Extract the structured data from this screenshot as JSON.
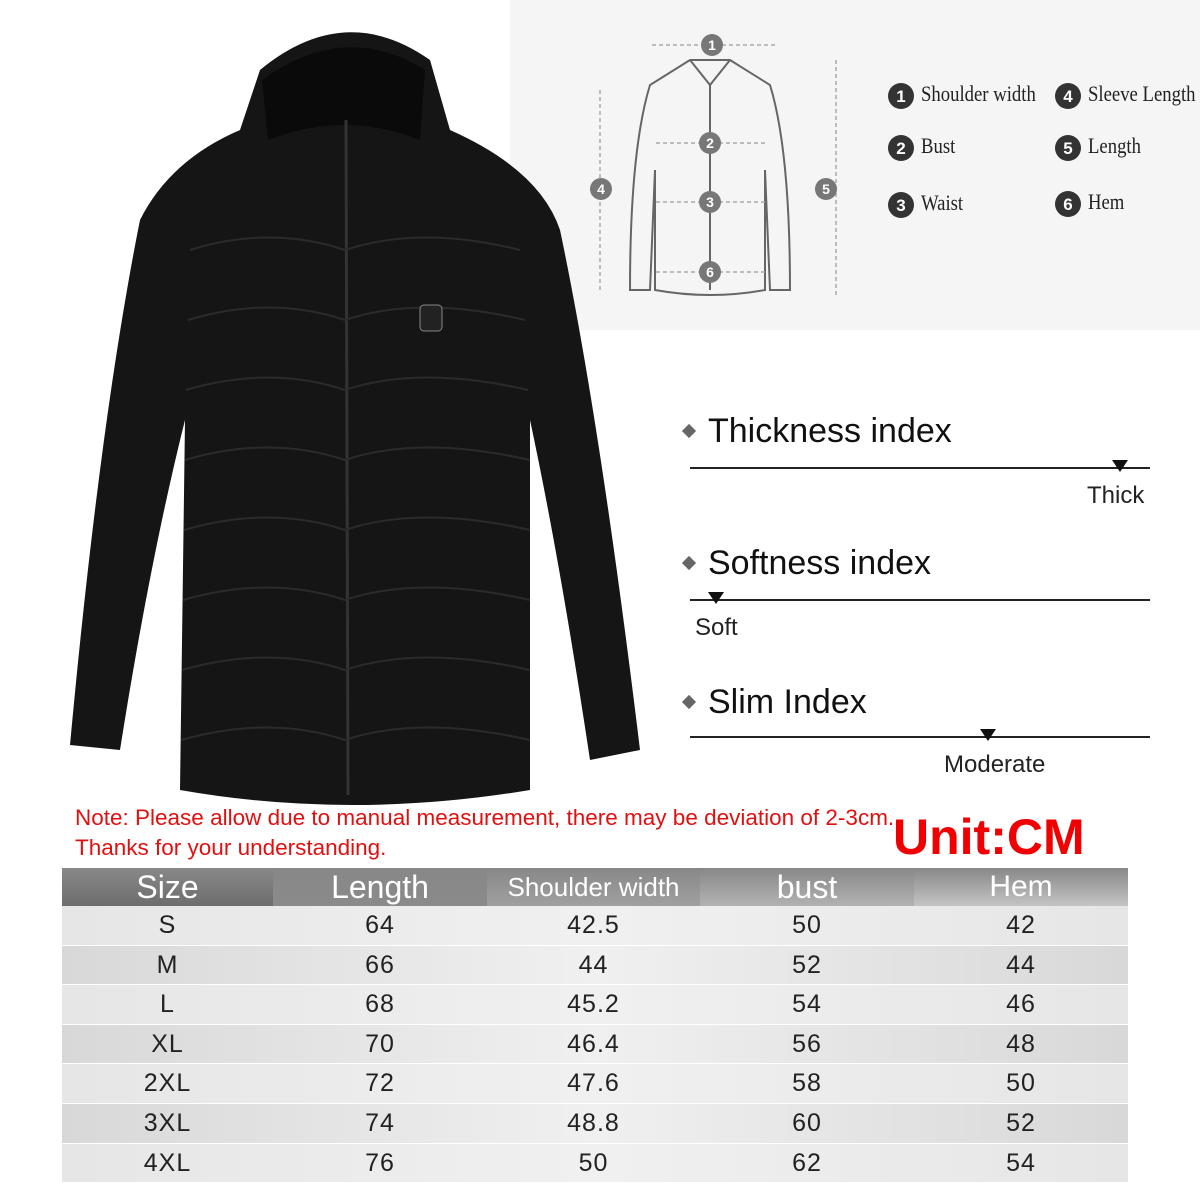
{
  "size_guide": {
    "items": [
      {
        "number": "1",
        "label": "Shoulder width"
      },
      {
        "number": "2",
        "label": "Bust"
      },
      {
        "number": "3",
        "label": "Waist"
      },
      {
        "number": "4",
        "label": "Sleeve Length"
      },
      {
        "number": "5",
        "label": "Length"
      },
      {
        "number": "6",
        "label": "Hem"
      }
    ]
  },
  "indices": [
    {
      "title": "Thickness index",
      "level": "Thick"
    },
    {
      "title": "Softness index",
      "level": "Soft"
    },
    {
      "title": "Slim Index",
      "level": "Moderate"
    }
  ],
  "note": "Note: Please allow due to manual measurement, there may be deviation of 2-3cm. Thanks for your understanding.",
  "unit": "Unit:CM",
  "table": {
    "header": [
      "Size",
      "Length",
      "Shoulder width",
      "bust",
      "Hem"
    ],
    "rows": [
      [
        "S",
        64,
        42.5,
        50,
        42
      ],
      [
        "M",
        66,
        44,
        52,
        44
      ],
      [
        "L",
        68,
        45.2,
        54,
        46
      ],
      [
        "XL",
        70,
        46.4,
        56,
        48
      ],
      [
        "2XL",
        72,
        47.6,
        58,
        50
      ],
      [
        "3XL",
        74,
        48.8,
        60,
        52
      ],
      [
        "4XL",
        76,
        50,
        62,
        54
      ]
    ]
  }
}
